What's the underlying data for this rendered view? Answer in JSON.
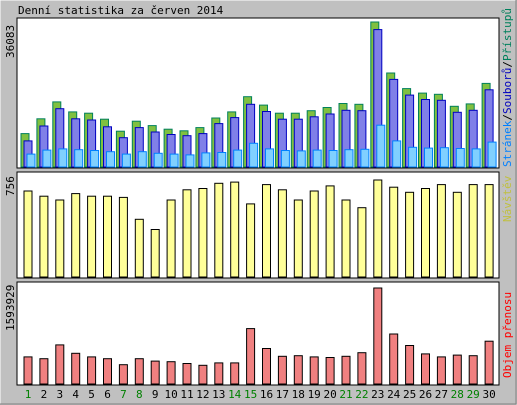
{
  "chart_data": {
    "type": "bar",
    "title": "Denní statistika za červen 2014",
    "categories": [
      "1",
      "2",
      "3",
      "4",
      "5",
      "6",
      "7",
      "8",
      "9",
      "10",
      "11",
      "12",
      "13",
      "14",
      "15",
      "16",
      "17",
      "18",
      "19",
      "20",
      "21",
      "22",
      "23",
      "24",
      "25",
      "26",
      "27",
      "28",
      "29",
      "30"
    ],
    "weekend_days": [
      "1",
      "7",
      "8",
      "14",
      "15",
      "21",
      "22",
      "28",
      "29"
    ],
    "colors": {
      "background": "#c0c0c0",
      "panel": "#ffffff",
      "pristupu": "#00805c",
      "pristupu_fill": "#80c040",
      "souboru": "#0000c0",
      "souboru_fill": "#8080e8",
      "stranek": "#0080ff",
      "stranek_fill": "#80d0ff",
      "navstev": "#c0c040",
      "navstev_fill": "#ffff99",
      "objem": "#ff0000",
      "objem_fill": "#f08080",
      "weekday_label": "#000000",
      "weekend_label": "#008000"
    },
    "panels": [
      {
        "id": "hits",
        "max_label": "36083",
        "ymax": 36083,
        "legend": [
          "Stránek",
          "Souborů",
          "Přístupů"
        ],
        "legend_colors": [
          "#0080ff",
          "#0000c0",
          "#00805c"
        ],
        "series": [
          {
            "name": "Přístupů",
            "values": [
              8300,
              12000,
              16200,
              13700,
              13400,
              11900,
              8900,
              11400,
              10300,
              9400,
              9000,
              9800,
              12200,
              13700,
              17500,
              15400,
              13400,
              13400,
              14000,
              14800,
              15800,
              15600,
              36083,
              23400,
              19500,
              18400,
              18100,
              15100,
              15700,
              20800
            ]
          },
          {
            "name": "Souborů",
            "values": [
              6500,
              10200,
              14500,
              12000,
              11700,
              10000,
              7300,
              9800,
              8700,
              8100,
              7800,
              8300,
              10800,
              12300,
              15600,
              13800,
              11900,
              11900,
              12500,
              13200,
              14100,
              14000,
              34200,
              21800,
              17900,
              16800,
              16600,
              13600,
              14100,
              19200
            ]
          },
          {
            "name": "Stránek",
            "values": [
              3200,
              4200,
              4500,
              4300,
              4100,
              3800,
              3200,
              3800,
              3400,
              3200,
              3000,
              3500,
              3600,
              4200,
              5900,
              4500,
              4100,
              4000,
              4200,
              4100,
              4300,
              4400,
              10400,
              6500,
              4900,
              4700,
              4800,
              4600,
              4500,
              6200
            ]
          }
        ]
      },
      {
        "id": "visits",
        "max_label": "756",
        "ymax": 756,
        "legend": [
          "Návštěv"
        ],
        "legend_colors": [
          "#c0c040"
        ],
        "series": [
          {
            "name": "Návštěv",
            "values": [
              670,
              630,
              600,
              650,
              630,
              630,
              620,
              450,
              370,
              600,
              680,
              690,
              730,
              740,
              570,
              720,
              680,
              600,
              670,
              710,
              600,
              540,
              756,
              700,
              660,
              690,
              720,
              660,
              720,
              720
            ]
          }
        ]
      },
      {
        "id": "volume",
        "max_label": "1593929",
        "ymax": 1593929,
        "legend": [
          "Objem přenosu"
        ],
        "legend_colors": [
          "#ff0000"
        ],
        "series": [
          {
            "name": "Objem přenosu",
            "values": [
              450000,
              420000,
              650000,
              510000,
              450000,
              420000,
              320000,
              420000,
              380000,
              370000,
              340000,
              310000,
              350000,
              350000,
              920000,
              590000,
              460000,
              470000,
              450000,
              440000,
              460000,
              520000,
              1593929,
              830000,
              640000,
              500000,
              450000,
              480000,
              470000,
              710000
            ]
          }
        ]
      }
    ]
  }
}
